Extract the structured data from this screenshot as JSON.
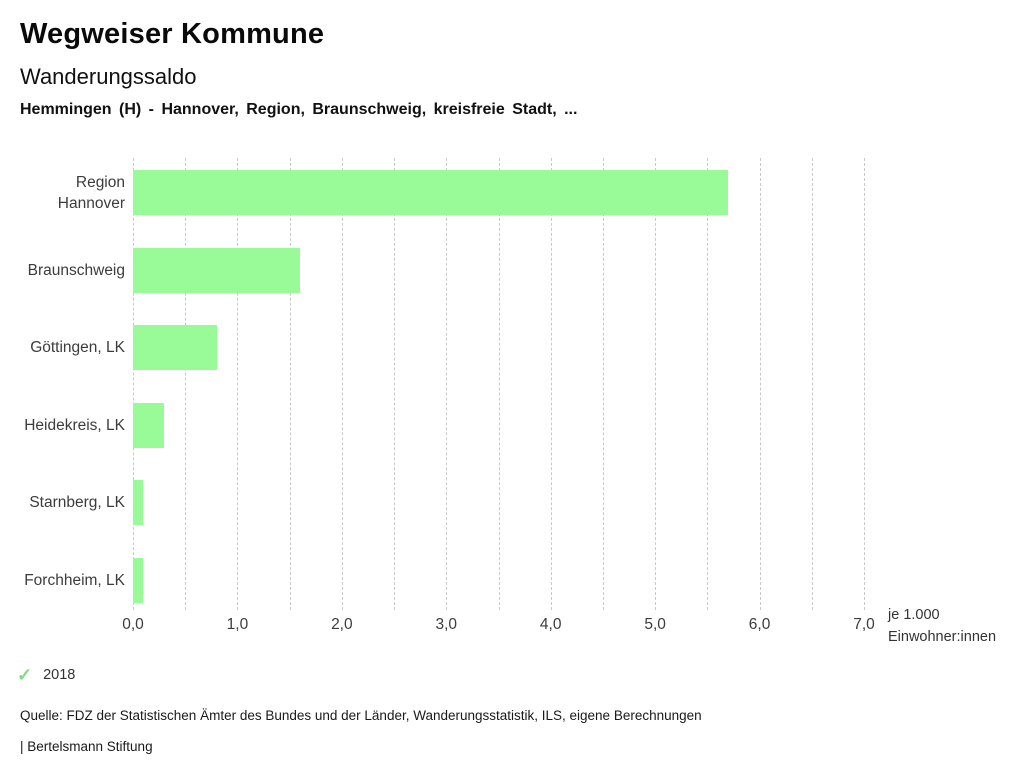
{
  "header": {
    "app_title": "Wegweiser Kommune",
    "chart_title": "Wanderungssaldo",
    "subtitle": "Hemmingen (H) - Hannover, Region, Braunschweig, kreisfreie Stadt, ..."
  },
  "chart_data": {
    "type": "bar",
    "orientation": "horizontal",
    "title": "Wanderungssaldo",
    "categories": [
      "Region Hannover",
      "Braunschweig",
      "Göttingen, LK",
      "Heidekreis, LK",
      "Starnberg, LK",
      "Forchheim, LK"
    ],
    "series": [
      {
        "name": "2018",
        "values": [
          5.7,
          1.6,
          0.8,
          0.3,
          0.1,
          0.1
        ]
      }
    ],
    "xlabel": "je 1.000 Einwohner:innen",
    "xlabel_lines": [
      "je 1.000",
      "Einwohner:innen"
    ],
    "xlim": [
      0,
      7
    ],
    "x_major_step": 1.0,
    "x_minor_step": 0.5,
    "x_tick_labels": [
      "0,0",
      "1,0",
      "2,0",
      "3,0",
      "4,0",
      "5,0",
      "6,0",
      "7,0"
    ],
    "grid": "vertical-dashed",
    "legend_position": "bottom-left",
    "bar_color": "#98FB98",
    "gridline_color": "#C9C9C9"
  },
  "legend": {
    "items": [
      {
        "label": "2018",
        "checked": true,
        "check_color": "#82D982"
      }
    ]
  },
  "footer": {
    "source": "Quelle: FDZ der Statistischen Ämter des Bundes und der Länder, Wanderungsstatistik, ILS, eigene Berechnungen",
    "attribution": "| Bertelsmann Stiftung"
  }
}
